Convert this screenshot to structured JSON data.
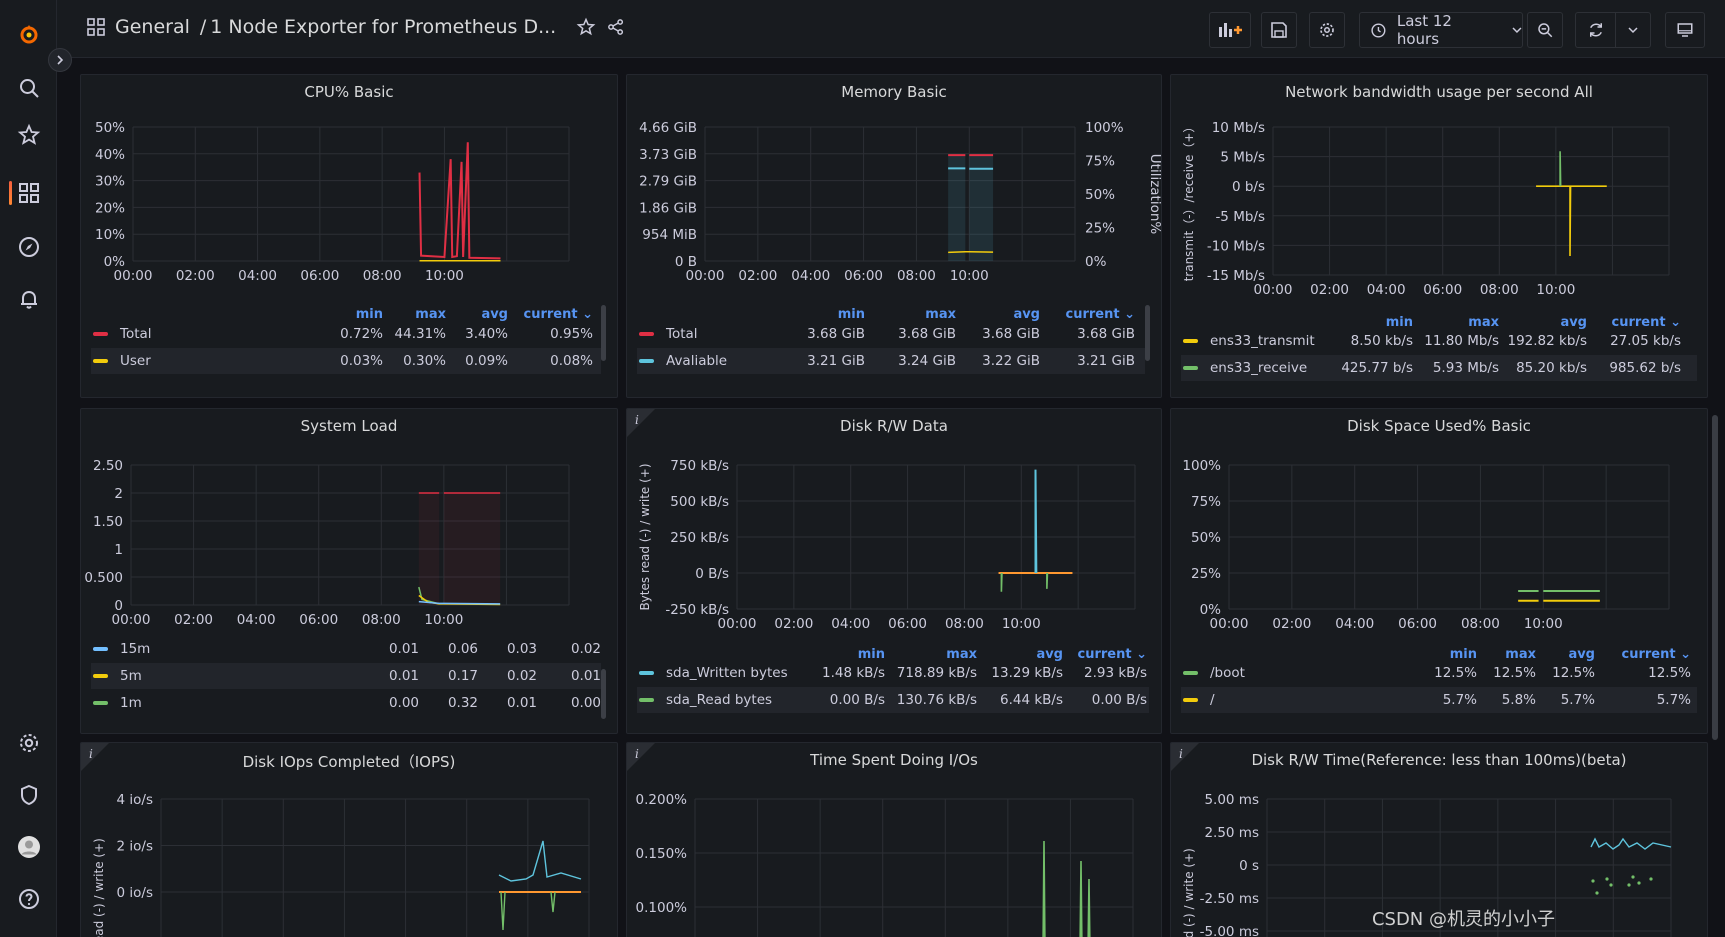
{
  "colors": {
    "red": "#e02f44",
    "yellow": "#f2cc0c",
    "blue": "#73bfff",
    "cyan": "#5ec4dd",
    "green": "#73bf69",
    "orange": "#ff9830",
    "accent": "#5794f2"
  },
  "header": {
    "breadcrumb_folder": "General",
    "breadcrumb_separator": "/",
    "dashboard_title": "1 Node Exporter for Prometheus D...",
    "time_range": "Last 12 hours",
    "icons": [
      "apps-icon",
      "star-icon",
      "share-icon",
      "add-panel-icon",
      "save-icon",
      "gear-icon",
      "clock-icon",
      "chevron-down-icon",
      "zoom-out-icon",
      "refresh-icon",
      "tv-icon"
    ]
  },
  "sidebar": {
    "items": [
      "grafana-logo",
      "search-icon",
      "star-icon",
      "dashboards-icon",
      "explore-icon",
      "alerting-icon",
      "configuration-icon",
      "server-admin-icon",
      "profile-avatar",
      "help-icon"
    ]
  },
  "panels": {
    "cpu": {
      "title": "CPU% Basic",
      "legend_headers": [
        "min",
        "max",
        "avg",
        "current"
      ],
      "rows": [
        {
          "name": "Total",
          "color": "#e02f44",
          "values": [
            "0.72%",
            "44.31%",
            "3.40%",
            "0.95%"
          ]
        },
        {
          "name": "User",
          "color": "#f2cc0c",
          "values": [
            "0.03%",
            "0.30%",
            "0.09%",
            "0.08%"
          ]
        }
      ]
    },
    "memory": {
      "title": "Memory Basic",
      "legend_headers": [
        "min",
        "max",
        "avg",
        "current"
      ],
      "rows": [
        {
          "name": "Total",
          "color": "#e02f44",
          "values": [
            "3.68 GiB",
            "3.68 GiB",
            "3.68 GiB",
            "3.68 GiB"
          ]
        },
        {
          "name": "Avaliable",
          "color": "#5ec4dd",
          "values": [
            "3.21 GiB",
            "3.24 GiB",
            "3.22 GiB",
            "3.21 GiB"
          ]
        }
      ]
    },
    "network": {
      "title": "Network bandwidth usage per second All",
      "legend_headers": [
        "min",
        "max",
        "avg",
        "current"
      ],
      "rows": [
        {
          "name": "ens33_transmit",
          "color": "#f2cc0c",
          "values": [
            "8.50 kb/s",
            "11.80 Mb/s",
            "192.82 kb/s",
            "27.05 kb/s"
          ]
        },
        {
          "name": "ens33_receive",
          "color": "#73bf69",
          "values": [
            "425.77 b/s",
            "5.93 Mb/s",
            "85.20 kb/s",
            "985.62 b/s"
          ]
        }
      ]
    },
    "load": {
      "title": "System Load",
      "legend_headers": [],
      "rows": [
        {
          "name": "15m",
          "color": "#73bfff",
          "values": [
            "0.01",
            "0.06",
            "0.03",
            "0.02"
          ]
        },
        {
          "name": "5m",
          "color": "#f2cc0c",
          "values": [
            "0.01",
            "0.17",
            "0.02",
            "0.01"
          ]
        },
        {
          "name": "1m",
          "color": "#73bf69",
          "values": [
            "0.00",
            "0.32",
            "0.01",
            "0.00"
          ]
        }
      ]
    },
    "diskrw": {
      "title": "Disk R/W Data",
      "legend_headers": [
        "min",
        "max",
        "avg",
        "current"
      ],
      "rows": [
        {
          "name": "sda_Written bytes",
          "color": "#5ec4dd",
          "values": [
            "1.48 kB/s",
            "718.89 kB/s",
            "13.29 kB/s",
            "2.93 kB/s"
          ]
        },
        {
          "name": "sda_Read bytes",
          "color": "#73bf69",
          "values": [
            "0.00 B/s",
            "130.76 kB/s",
            "6.44 kB/s",
            "0.00 B/s"
          ]
        }
      ]
    },
    "diskspace": {
      "title": "Disk Space Used% Basic",
      "legend_headers": [
        "min",
        "max",
        "avg",
        "current"
      ],
      "rows": [
        {
          "name": "/boot",
          "color": "#73bf69",
          "values": [
            "12.5%",
            "12.5%",
            "12.5%",
            "12.5%"
          ]
        },
        {
          "name": "/",
          "color": "#f2cc0c",
          "values": [
            "5.7%",
            "5.8%",
            "5.7%",
            "5.7%"
          ]
        }
      ]
    },
    "iops": {
      "title": "Disk IOps Completed（IOPS)"
    },
    "iotime": {
      "title": "Time Spent Doing I/Os"
    },
    "rwtime": {
      "title": "Disk R/W Time(Reference: less than 100ms)(beta)"
    }
  },
  "chart_data": [
    {
      "type": "line",
      "panel": "cpu",
      "x_ticks": [
        "00:00",
        "02:00",
        "04:00",
        "06:00",
        "08:00",
        "10:00"
      ],
      "y_ticks": [
        "50%",
        "40%",
        "30%",
        "20%",
        "10%",
        "0%"
      ],
      "ylim": [
        0,
        50
      ],
      "series": [
        {
          "name": "Total",
          "values": [
            [
              9.2,
              33
            ],
            [
              9.25,
              2
            ],
            [
              10.0,
              1.5
            ],
            [
              10.2,
              38
            ],
            [
              10.25,
              1.5
            ],
            [
              10.4,
              1.8
            ],
            [
              10.55,
              37
            ],
            [
              10.6,
              1.5
            ],
            [
              10.75,
              44.3
            ],
            [
              10.8,
              1.2
            ],
            [
              11.8,
              1.0
            ]
          ]
        },
        {
          "name": "User",
          "values": [
            [
              9.2,
              0.1
            ],
            [
              11.8,
              0.1
            ]
          ]
        }
      ]
    },
    {
      "type": "line",
      "panel": "memory",
      "x_ticks": [
        "00:00",
        "02:00",
        "04:00",
        "06:00",
        "08:00",
        "10:00"
      ],
      "y_ticks": [
        "4.66 GiB",
        "3.73 GiB",
        "2.79 GiB",
        "1.86 GiB",
        "954 MiB",
        "0 B"
      ],
      "y2_ticks": [
        "100%",
        "75%",
        "50%",
        "25%",
        "0%"
      ],
      "y2_label": "Utilization%",
      "ylim": [
        0,
        4.66
      ],
      "series": [
        {
          "name": "Total",
          "values": [
            [
              9.2,
              3.68
            ],
            [
              10.9,
              3.68
            ]
          ]
        },
        {
          "name": "Avaliable",
          "values": [
            [
              9.2,
              3.22
            ],
            [
              10.9,
              3.21
            ]
          ]
        }
      ]
    },
    {
      "type": "line",
      "panel": "network",
      "x_ticks": [
        "00:00",
        "02:00",
        "04:00",
        "06:00",
        "08:00",
        "10:00"
      ],
      "y_ticks": [
        "10 Mb/s",
        "5 Mb/s",
        "0 b/s",
        "-5 Mb/s",
        "-10 Mb/s",
        "-15 Mb/s"
      ],
      "ylabel": "transmit（-）/receive（+）",
      "ylim": [
        -15,
        10
      ],
      "series": [
        {
          "name": "ens33_transmit",
          "values": [
            [
              9.2,
              0
            ],
            [
              10.9,
              0
            ]
          ]
        },
        {
          "name": "ens33_receive",
          "values": [
            [
              9.2,
              0
            ],
            [
              10.9,
              0
            ]
          ]
        }
      ]
    },
    {
      "type": "line",
      "panel": "load",
      "x_ticks": [
        "00:00",
        "02:00",
        "04:00",
        "06:00",
        "08:00",
        "10:00"
      ],
      "y_ticks": [
        "2.50",
        "2",
        "1.50",
        "1",
        "0.500",
        "0"
      ],
      "ylim": [
        0,
        2.5
      ],
      "series": [
        {
          "name": "15m",
          "values": [
            [
              9.2,
              0.05
            ],
            [
              11.8,
              0.03
            ]
          ]
        },
        {
          "name": "5m",
          "values": [
            [
              9.2,
              0.17
            ],
            [
              11.8,
              0.02
            ]
          ]
        },
        {
          "name": "1m",
          "values": [
            [
              9.2,
              0.32
            ],
            [
              11.8,
              0.01
            ]
          ]
        }
      ]
    },
    {
      "type": "line",
      "panel": "diskrw",
      "x_ticks": [
        "00:00",
        "02:00",
        "04:00",
        "06:00",
        "08:00",
        "10:00"
      ],
      "y_ticks": [
        "750 kB/s",
        "500 kB/s",
        "250 kB/s",
        "0 B/s",
        "-250 kB/s"
      ],
      "ylabel": "Bytes read (-) / write (+)",
      "ylim": [
        -250,
        750
      ],
      "series": [
        {
          "name": "sda_Written bytes",
          "values": [
            [
              10.5,
              718.89
            ]
          ]
        },
        {
          "name": "sda_Read bytes",
          "values": [
            [
              9.3,
              -130.76
            ]
          ]
        }
      ]
    },
    {
      "type": "line",
      "panel": "diskspace",
      "x_ticks": [
        "00:00",
        "02:00",
        "04:00",
        "06:00",
        "08:00",
        "10:00"
      ],
      "y_ticks": [
        "100%",
        "75%",
        "50%",
        "25%",
        "0%"
      ],
      "ylim": [
        0,
        100
      ],
      "series": [
        {
          "name": "/boot",
          "values": [
            [
              9.2,
              12.5
            ],
            [
              11.8,
              12.5
            ]
          ]
        },
        {
          "name": "/",
          "values": [
            [
              9.2,
              5.7
            ],
            [
              11.8,
              5.7
            ]
          ]
        }
      ]
    },
    {
      "type": "line",
      "panel": "iops",
      "y_ticks": [
        "4 io/s",
        "2 io/s",
        "0 io/s"
      ],
      "ylabel": "read (-) / write (+)",
      "series": []
    },
    {
      "type": "line",
      "panel": "iotime",
      "y_ticks": [
        "0.200%",
        "0.150%",
        "0.100%"
      ],
      "series": []
    },
    {
      "type": "line",
      "panel": "rwtime",
      "y_ticks": [
        "5.00 ms",
        "2.50 ms",
        "0 s",
        "-2.50 ms",
        "-5.00 ms"
      ],
      "ylabel": "read (-) / write (+)",
      "series": []
    }
  ],
  "watermark": "CSDN @机灵的小小子"
}
